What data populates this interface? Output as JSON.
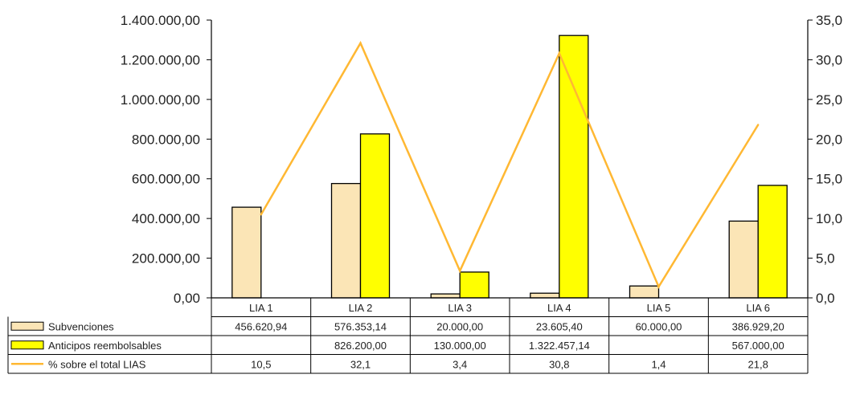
{
  "chart_data": {
    "type": "bar",
    "categories": [
      "LIA 1",
      "LIA 2",
      "LIA 3",
      "LIA 4",
      "LIA 5",
      "LIA 6"
    ],
    "series": [
      {
        "name": "Subvenciones",
        "kind": "bar",
        "axis": "left",
        "color": "#fbe5b6",
        "values": [
          456620.94,
          576353.14,
          20000.0,
          23605.4,
          60000.0,
          386929.2
        ],
        "labels": [
          "456.620,94",
          "576.353,14",
          "20.000,00",
          "23.605,40",
          "60.000,00",
          "386.929,20"
        ]
      },
      {
        "name": "Anticipos reembolsables",
        "kind": "bar",
        "axis": "left",
        "color": "#ffff00",
        "values": [
          null,
          826200.0,
          130000.0,
          1322457.14,
          null,
          567000.0
        ],
        "labels": [
          "",
          "826.200,00",
          "130.000,00",
          "1.322.457,14",
          "",
          "567.000,00"
        ]
      },
      {
        "name": "% sobre el total LIAS",
        "kind": "line",
        "axis": "right",
        "color": "#ffb833",
        "values": [
          10.5,
          32.1,
          3.4,
          30.8,
          1.4,
          21.8
        ],
        "labels": [
          "10,5",
          "32,1",
          "3,4",
          "30,8",
          "1,4",
          "21,8"
        ]
      }
    ],
    "left_axis": {
      "ylim": [
        0,
        1400000
      ],
      "ticks": [
        0,
        200000,
        400000,
        600000,
        800000,
        1000000,
        1200000,
        1400000
      ],
      "tick_labels": [
        "0,00",
        "200.000,00",
        "400.000,00",
        "600.000,00",
        "800.000,00",
        "1.000.000,00",
        "1.200.000,00",
        "1.400.000,00"
      ]
    },
    "right_axis": {
      "ylim": [
        0,
        35
      ],
      "ticks": [
        0,
        5,
        10,
        15,
        20,
        25,
        30,
        35
      ],
      "tick_labels": [
        "0,0",
        "5,0",
        "10,0",
        "15,0",
        "20,0",
        "25,0",
        "30,0",
        "35,0"
      ]
    },
    "grid": false,
    "legend": "data-table"
  }
}
